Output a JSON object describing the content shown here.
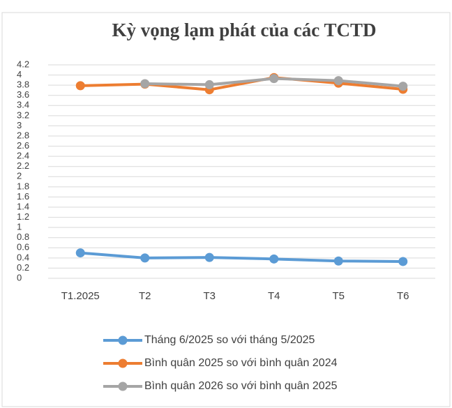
{
  "chart_data": {
    "type": "line",
    "title": "Kỳ vọng lạm phát của các TCTD",
    "categories": [
      "T1.2025",
      "T2",
      "T3",
      "T4",
      "T5",
      "T6"
    ],
    "series": [
      {
        "name": "Tháng 6/2025 so với tháng 5/2025",
        "color": "#5b9bd5",
        "values": [
          0.5,
          0.4,
          0.41,
          0.38,
          0.34,
          0.33
        ]
      },
      {
        "name": "Bình quân 2025 so với bình quân  2024",
        "color": "#ed7d31",
        "values": [
          3.79,
          3.82,
          3.71,
          3.95,
          3.84,
          3.72
        ]
      },
      {
        "name": "Bình quân 2026 so với bình quân 2025",
        "color": "#a5a5a5",
        "values": [
          null,
          3.83,
          3.81,
          3.93,
          3.89,
          3.78
        ]
      }
    ],
    "ylim": [
      0,
      4.2
    ],
    "yticks": [
      0,
      0.2,
      0.4,
      0.6,
      0.8,
      1,
      1.2,
      1.4,
      1.6,
      1.8,
      2,
      2.2,
      2.4,
      2.6,
      2.8,
      3,
      3.2,
      3.4,
      3.6,
      3.8,
      4,
      4.2
    ],
    "grid": true,
    "legend": "bottom"
  }
}
